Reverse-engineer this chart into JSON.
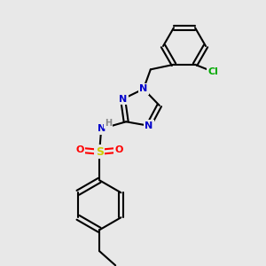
{
  "background_color": "#e8e8e8",
  "colors": {
    "C": "#000000",
    "N": "#0000cc",
    "O": "#ff0000",
    "S": "#cccc00",
    "Cl": "#00aa00",
    "H": "#888888",
    "bond": "#000000"
  }
}
